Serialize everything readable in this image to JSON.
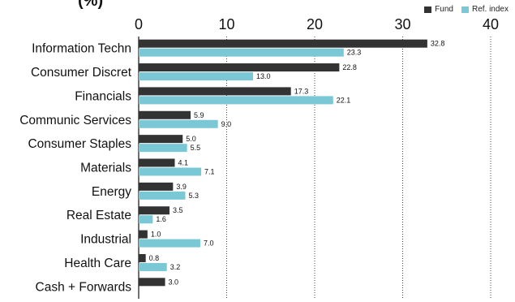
{
  "title_fragment": "(%)",
  "legend": [
    {
      "name": "Fund",
      "color": "#333333"
    },
    {
      "name": "Ref. index",
      "color": "#7ac8d6"
    }
  ],
  "chart_data": {
    "type": "bar",
    "orientation": "horizontal",
    "title": "",
    "xlabel": "",
    "ylabel": "",
    "xlim": [
      0,
      40
    ],
    "xticks": [
      0,
      10,
      20,
      30,
      40
    ],
    "grid": "vertical dotted",
    "legend_position": "top-right",
    "categories": [
      "Information Techn",
      "Consumer Discret",
      "Financials",
      "Communic Services",
      "Consumer Staples",
      "Materials",
      "Energy",
      "Real Estate",
      "Industrial",
      "Health Care",
      "Cash + Forwards"
    ],
    "series": [
      {
        "name": "Fund",
        "color": "#333333",
        "values": [
          32.8,
          22.8,
          17.3,
          5.9,
          5.0,
          4.1,
          3.9,
          3.5,
          1.0,
          0.8,
          3.0
        ]
      },
      {
        "name": "Ref. index",
        "color": "#7ac8d6",
        "values": [
          23.3,
          13.0,
          22.1,
          9.0,
          5.5,
          7.1,
          5.3,
          1.6,
          7.0,
          3.2,
          null
        ]
      }
    ]
  }
}
